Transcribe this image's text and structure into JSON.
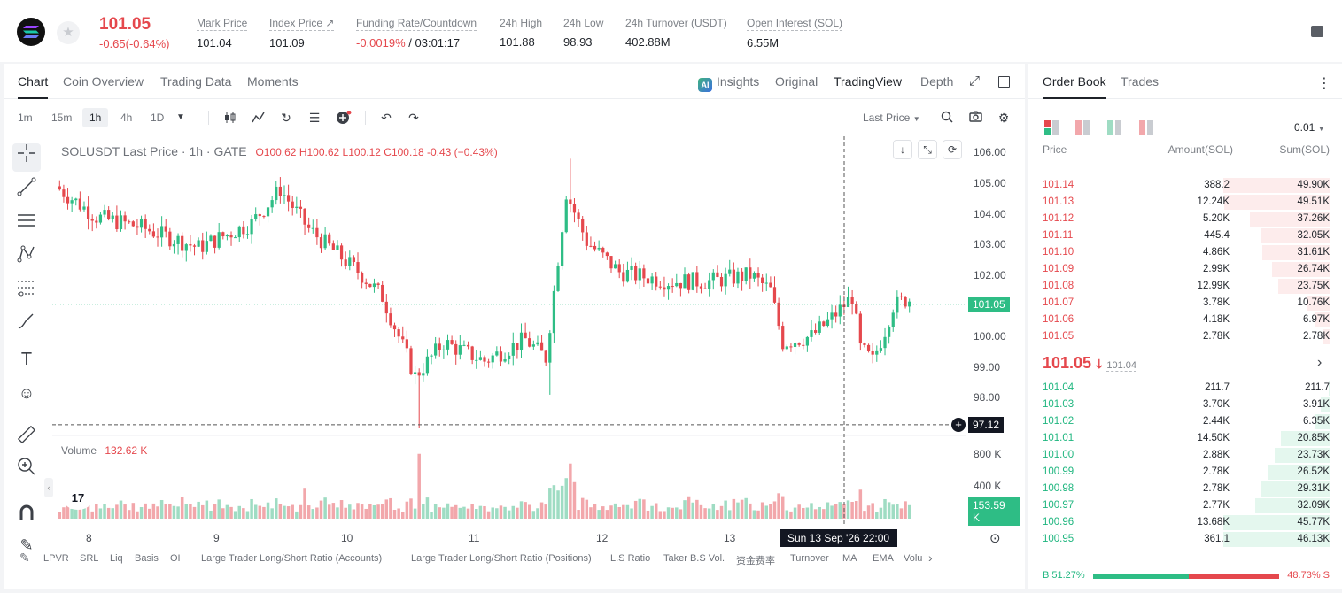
{
  "header": {
    "price": "101.05",
    "change": "-0.65(-0.64%)",
    "stats": [
      {
        "label": "Mark Price",
        "value": "101.04"
      },
      {
        "label": "Index Price ↗",
        "value": "101.09"
      },
      {
        "label": "Funding Rate/Countdown",
        "value_red": "-0.0019%",
        "value_rest": " / 03:01:17"
      },
      {
        "label": "24h High",
        "value": "101.88"
      },
      {
        "label": "24h Low",
        "value": "98.93"
      },
      {
        "label": "24h Turnover (USDT)",
        "value": "402.88M"
      },
      {
        "label": "Open Interest (SOL)",
        "value": "6.55M"
      }
    ]
  },
  "chart_tabs": [
    "Chart",
    "Coin Overview",
    "Trading Data",
    "Moments"
  ],
  "view_tabs": [
    "Insights",
    "Original",
    "TradingView",
    "Depth"
  ],
  "ai_label": "AI",
  "timeframes": [
    "1m",
    "15m",
    "1h",
    "4h",
    "1D"
  ],
  "price_type": "Last Price",
  "legend": {
    "symbol": "SOLUSDT Last Price · 1h · GATE",
    "o": "O100.62",
    "h": "H100.62",
    "l": "L100.12",
    "c": "C100.18",
    "chg": "-0.43 (−0.43%)"
  },
  "volume_label": "Volume",
  "volume_value": "132.62 K",
  "price_axis": [
    "106.00",
    "105.00",
    "104.00",
    "103.00",
    "102.00",
    "101.00",
    "100.00",
    "99.00",
    "98.00"
  ],
  "last_price_tag": "101.05",
  "crosshair_tag": "97.12",
  "volume_axis": [
    "800 K",
    "400 K"
  ],
  "volume_tag": "153.59 K",
  "x_axis": [
    "8",
    "9",
    "10",
    "11",
    "12",
    "13"
  ],
  "crosshair_time": "Sun 13 Sep '26   22:00",
  "tv_logo": "17",
  "indicators": [
    "LPVR",
    "SRL",
    "Liq",
    "Basis",
    "OI",
    "Large Trader Long/Short Ratio (Accounts)",
    "Large Trader Long/Short Ratio (Positions)",
    "L.S Ratio",
    "Taker B.S Vol.",
    "资金费率",
    "Turnover",
    "MA",
    "EMA",
    "Volu"
  ],
  "orderbook": {
    "tabs": [
      "Order Book",
      "Trades"
    ],
    "precision": "0.01",
    "headers": [
      "Price",
      "Amount(SOL)",
      "Sum(SOL)"
    ],
    "asks": [
      {
        "price": "101.14",
        "amount": "388.2",
        "sum": "49.90K",
        "depth": 1.0
      },
      {
        "price": "101.13",
        "amount": "12.24K",
        "sum": "49.51K",
        "depth": 0.99
      },
      {
        "price": "101.12",
        "amount": "5.20K",
        "sum": "37.26K",
        "depth": 0.75
      },
      {
        "price": "101.11",
        "amount": "445.4",
        "sum": "32.05K",
        "depth": 0.64
      },
      {
        "price": "101.10",
        "amount": "4.86K",
        "sum": "31.61K",
        "depth": 0.63
      },
      {
        "price": "101.09",
        "amount": "2.99K",
        "sum": "26.74K",
        "depth": 0.54
      },
      {
        "price": "101.08",
        "amount": "12.99K",
        "sum": "23.75K",
        "depth": 0.48
      },
      {
        "price": "101.07",
        "amount": "3.78K",
        "sum": "10.76K",
        "depth": 0.22
      },
      {
        "price": "101.06",
        "amount": "4.18K",
        "sum": "6.97K",
        "depth": 0.14
      },
      {
        "price": "101.05",
        "amount": "2.78K",
        "sum": "2.78K",
        "depth": 0.06
      }
    ],
    "mid_price": "101.05",
    "mid_mark": "101.04",
    "bids": [
      {
        "price": "101.04",
        "amount": "211.7",
        "sum": "211.7",
        "depth": 0.005
      },
      {
        "price": "101.03",
        "amount": "3.70K",
        "sum": "3.91K",
        "depth": 0.08
      },
      {
        "price": "101.02",
        "amount": "2.44K",
        "sum": "6.35K",
        "depth": 0.14
      },
      {
        "price": "101.01",
        "amount": "14.50K",
        "sum": "20.85K",
        "depth": 0.46
      },
      {
        "price": "101.00",
        "amount": "2.88K",
        "sum": "23.73K",
        "depth": 0.52
      },
      {
        "price": "100.99",
        "amount": "2.78K",
        "sum": "26.52K",
        "depth": 0.58
      },
      {
        "price": "100.98",
        "amount": "2.78K",
        "sum": "29.31K",
        "depth": 0.64
      },
      {
        "price": "100.97",
        "amount": "2.77K",
        "sum": "32.09K",
        "depth": 0.7
      },
      {
        "price": "100.96",
        "amount": "13.68K",
        "sum": "45.77K",
        "depth": 1.0
      },
      {
        "price": "100.95",
        "amount": "361.1",
        "sum": "46.13K",
        "depth": 1.0
      }
    ],
    "buy_ratio": "B 51.27%",
    "sell_ratio": "48.73% S",
    "buy_fraction": 0.5127
  },
  "colors": {
    "up": "#2ebd85",
    "down": "#e5484d",
    "up_vol": "#9fdcc3",
    "down_vol": "#f2a7ab"
  }
}
